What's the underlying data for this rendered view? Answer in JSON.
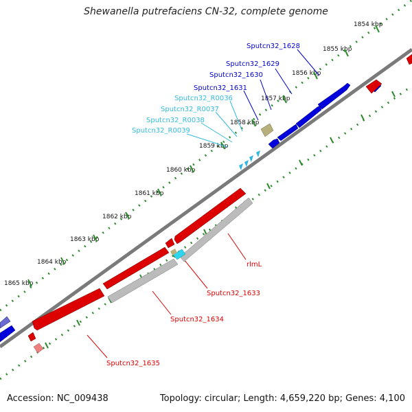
{
  "title": "Shewanella putrefaciens CN-32, complete genome",
  "footer": {
    "accession": "Accession: NC_009438",
    "topology": "Topology: circular; Length: 4,659,220 bp; Genes: 4,100"
  },
  "ticks": [
    "1854 kbp",
    "1855 kbp",
    "1856 kbp",
    "1857 kbp",
    "1858 kbp",
    "1859 kbp",
    "1860 kbp",
    "1861 kbp",
    "1862 kbp",
    "1863 kbp",
    "1864 kbp",
    "1865 kbp"
  ],
  "gene_labels": {
    "forward": [
      "Sputcn32_1628",
      "Sputcn32_1629",
      "Sputcn32_1630",
      "Sputcn32_1631"
    ],
    "rna": [
      "Sputcn32_R0036",
      "Sputcn32_R0037",
      "Sputcn32_R0038",
      "Sputcn32_R0039"
    ],
    "reverse": [
      "rlmL",
      "Sputcn32_1633",
      "Sputcn32_1634",
      "Sputcn32_1635"
    ]
  },
  "colors": {
    "forward_cds": "#0000dd",
    "reverse_cds": "#dd0000",
    "rna": "#2fb5e0",
    "pseudo": "#bbbbbb",
    "misc": "#b8b07a",
    "backbone": "#7a7a7a",
    "tick": "#2e8b2e",
    "rna_label": "#33bbdd"
  }
}
